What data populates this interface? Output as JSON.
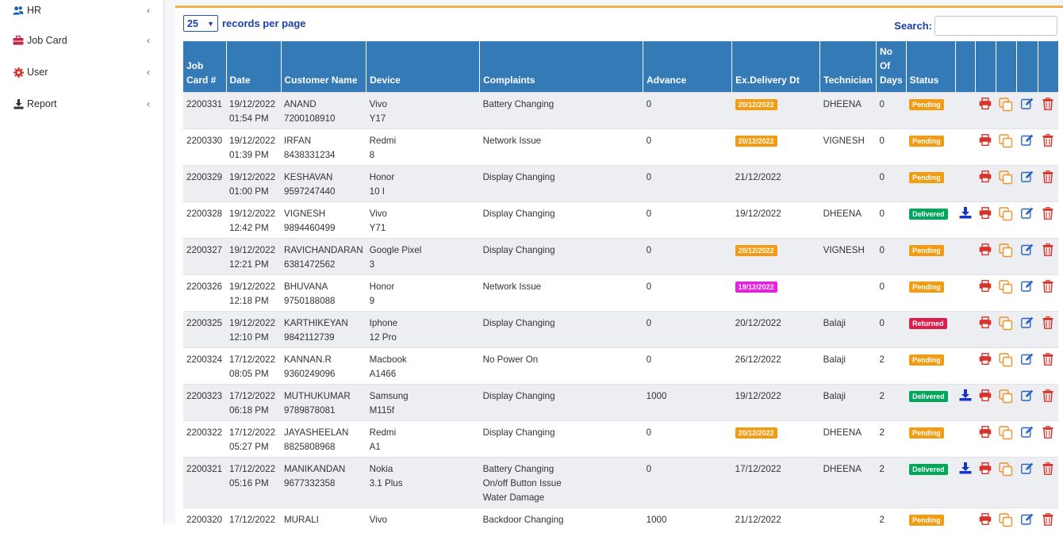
{
  "sidebar": {
    "items": [
      {
        "label": "HR",
        "icon": "users-icon"
      },
      {
        "label": "Job Card",
        "icon": "briefcase-icon"
      },
      {
        "label": "User",
        "icon": "gear-icon"
      },
      {
        "label": "Report",
        "icon": "download-icon"
      }
    ]
  },
  "controls": {
    "page_length": "25",
    "records_label": "records per page",
    "search_label": "Search:",
    "search_value": ""
  },
  "colors": {
    "header_bg": "#337ab7",
    "pending": "#f39c12",
    "delivered": "#00a65a",
    "returned": "#dd1f4b",
    "overdue_date": "#e91ee2",
    "accent_border": "#f0b44d"
  },
  "table": {
    "headers": {
      "job_card_line1": "Job",
      "job_card_line2": "Card #",
      "date": "Date",
      "customer": "Customer Name",
      "device": "Device",
      "complaints": "Complaints",
      "advance": "Advance",
      "delivery": "Ex.Delivery Dt",
      "technician": "Technician",
      "days_line1": "No",
      "days_line2": "Of",
      "days_line3": "Days",
      "status": "Status"
    },
    "rows": [
      {
        "job": "2200331",
        "date": "19/12/2022",
        "time": "01:54 PM",
        "name": "ANAND",
        "phone": "7200108910",
        "brand": "Vivo",
        "model": "Y17",
        "complaints": [
          "Battery Changing"
        ],
        "advance": "0",
        "delivery": "20/12/2022",
        "delivery_style": "pending",
        "tech": "DHEENA",
        "days": "0",
        "status": "Pending",
        "download": false
      },
      {
        "job": "2200330",
        "date": "19/12/2022",
        "time": "01:39 PM",
        "name": "IRFAN",
        "phone": "8438331234",
        "brand": "Redmi",
        "model": "8",
        "complaints": [
          "Network Issue"
        ],
        "advance": "0",
        "delivery": "20/12/2022",
        "delivery_style": "pending",
        "tech": "VIGNESH",
        "days": "0",
        "status": "Pending",
        "download": false
      },
      {
        "job": "2200329",
        "date": "19/12/2022",
        "time": "01:00 PM",
        "name": "KESHAVAN",
        "phone": "9597247440",
        "brand": "Honor",
        "model": "10 I",
        "complaints": [
          "Display Changing"
        ],
        "advance": "0",
        "delivery": "21/12/2022",
        "delivery_style": "plain",
        "tech": "",
        "days": "0",
        "status": "Pending",
        "download": false
      },
      {
        "job": "2200328",
        "date": "19/12/2022",
        "time": "12:42 PM",
        "name": "VIGNESH",
        "phone": "9894460499",
        "brand": "Vivo",
        "model": "Y71",
        "complaints": [
          "Display Changing"
        ],
        "advance": "0",
        "delivery": "19/12/2022",
        "delivery_style": "plain",
        "tech": "DHEENA",
        "days": "0",
        "status": "Delivered",
        "download": true
      },
      {
        "job": "2200327",
        "date": "19/12/2022",
        "time": "12:21 PM",
        "name": "RAVICHANDARAN",
        "phone": "6381472562",
        "brand": "Google Pixel",
        "model": "3",
        "complaints": [
          "Display Changing"
        ],
        "advance": "0",
        "delivery": "20/12/2022",
        "delivery_style": "pending",
        "tech": "VIGNESH",
        "days": "0",
        "status": "Pending",
        "download": false
      },
      {
        "job": "2200326",
        "date": "19/12/2022",
        "time": "12:18 PM",
        "name": "BHUVANA",
        "phone": "9750188088",
        "brand": "Honor",
        "model": "9",
        "complaints": [
          "Network Issue"
        ],
        "advance": "0",
        "delivery": "19/12/2022",
        "delivery_style": "overdue",
        "tech": "",
        "days": "0",
        "status": "Pending",
        "download": false
      },
      {
        "job": "2200325",
        "date": "19/12/2022",
        "time": "12:10 PM",
        "name": "KARTHIKEYAN",
        "phone": "9842112739",
        "brand": "Iphone",
        "model": "12 Pro",
        "complaints": [
          "Display Changing"
        ],
        "advance": "0",
        "delivery": "20/12/2022",
        "delivery_style": "plain",
        "tech": "Balaji",
        "days": "0",
        "status": "Returned",
        "download": false
      },
      {
        "job": "2200324",
        "date": "17/12/2022",
        "time": "08:05 PM",
        "name": "KANNAN.R",
        "phone": "9360249096",
        "brand": "Macbook",
        "model": "A1466",
        "complaints": [
          "No Power On"
        ],
        "advance": "0",
        "delivery": "26/12/2022",
        "delivery_style": "plain",
        "tech": "Balaji",
        "days": "2",
        "status": "Pending",
        "download": false
      },
      {
        "job": "2200323",
        "date": "17/12/2022",
        "time": "06:18 PM",
        "name": "MUTHUKUMAR",
        "phone": "9789878081",
        "brand": "Samsung",
        "model": "M115f",
        "complaints": [
          "Display Changing"
        ],
        "advance": "1000",
        "delivery": "19/12/2022",
        "delivery_style": "plain",
        "tech": "Balaji",
        "days": "2",
        "status": "Delivered",
        "download": true
      },
      {
        "job": "2200322",
        "date": "17/12/2022",
        "time": "05:27 PM",
        "name": "JAYASHEELAN",
        "phone": "8825808968",
        "brand": "Redmi",
        "model": "A1",
        "complaints": [
          "Display Changing"
        ],
        "advance": "0",
        "delivery": "20/12/2022",
        "delivery_style": "pending",
        "tech": "DHEENA",
        "days": "2",
        "status": "Pending",
        "download": false
      },
      {
        "job": "2200321",
        "date": "17/12/2022",
        "time": "05:16 PM",
        "name": "MANIKANDAN",
        "phone": "9677332358",
        "brand": "Nokia",
        "model": "3.1 Plus",
        "complaints": [
          "Battery Changing",
          "On/off Button Issue",
          "Water Damage"
        ],
        "advance": "0",
        "delivery": "17/12/2022",
        "delivery_style": "plain",
        "tech": "DHEENA",
        "days": "2",
        "status": "Delivered",
        "download": true
      },
      {
        "job": "2200320",
        "date": "17/12/2022",
        "time": "",
        "name": "MURALI",
        "phone": "",
        "brand": "Vivo",
        "model": "",
        "complaints": [
          "Backdoor Changing"
        ],
        "advance": "1000",
        "delivery": "21/12/2022",
        "delivery_style": "plain",
        "tech": "",
        "days": "2",
        "status": "Pending",
        "download": false
      }
    ]
  }
}
